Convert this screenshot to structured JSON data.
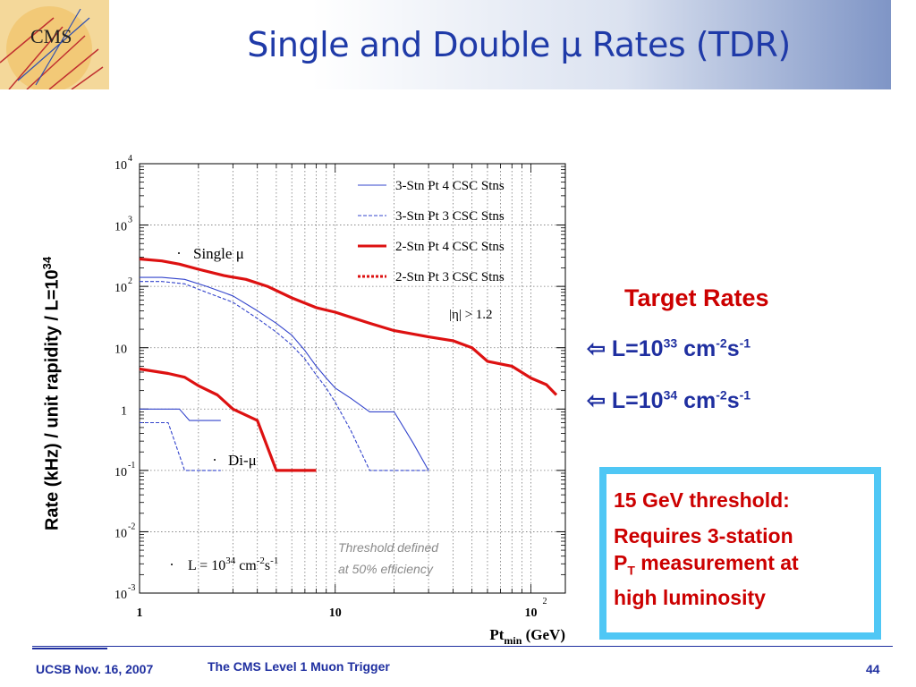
{
  "slide": {
    "title": "Single and Double μ Rates (TDR)",
    "logo_text": "CMS",
    "footer_left": "UCSB Nov. 16, 2007",
    "footer_center": "The CMS Level 1 Muon Trigger",
    "page_number": "44"
  },
  "target_rates": {
    "title": "Target Rates",
    "arrow": "⇦",
    "lines": [
      {
        "lumi": "L=10",
        "exp": "33",
        "unit": "cm",
        "unit_exp1": "-2",
        "unit2": "s",
        "unit_exp2": "-1"
      },
      {
        "lumi": "L=10",
        "exp": "34",
        "unit": "cm",
        "unit_exp1": "-2",
        "unit2": "s",
        "unit_exp2": "-1"
      }
    ]
  },
  "info_box": {
    "line1": "15 GeV threshold:",
    "line2": "Requires 3-station",
    "line3_a": "P",
    "line3_sub": "T",
    "line3_b": " measurement at",
    "line4": "high luminosity"
  },
  "chart_data": {
    "type": "line",
    "xlabel": "Pt",
    "xlabel_sub": "min",
    "xlabel_unit": "(GeV)",
    "ylabel": "Rate (kHz)  / unit rapidity / L=10",
    "ylabel_sup": "34",
    "x_scale": "log",
    "y_scale": "log",
    "xlim": [
      1,
      150
    ],
    "ylim": [
      0.001,
      10000
    ],
    "grid": true,
    "x_ticks": [
      {
        "value": 1,
        "base": "1",
        "exp": ""
      },
      {
        "value": 10,
        "base": "10",
        "exp": ""
      },
      {
        "value": 100,
        "base": "10",
        "exp": "2"
      }
    ],
    "y_ticks": [
      {
        "value": 10000,
        "base": "10",
        "exp": "4"
      },
      {
        "value": 1000,
        "base": "10",
        "exp": "3"
      },
      {
        "value": 100,
        "base": "10",
        "exp": "2"
      },
      {
        "value": 10,
        "base": "10",
        "exp": ""
      },
      {
        "value": 1,
        "base": "1",
        "exp": ""
      },
      {
        "value": 0.1,
        "base": "10",
        "exp": "-1"
      },
      {
        "value": 0.01,
        "base": "10",
        "exp": "-2"
      },
      {
        "value": 0.001,
        "base": "10",
        "exp": "-3"
      }
    ],
    "legend_position": "top-right",
    "series": [
      {
        "name": "3-Stn Pt  4 CSC Stns",
        "color": "#3344cc",
        "dash": false,
        "thick": false,
        "groups": [
          {
            "x": [
              1,
              1.3,
              1.7,
              2.2,
              3,
              4,
              5,
              6,
              7,
              8,
              9,
              10,
              12,
              15,
              20,
              25,
              30
            ],
            "y": [
              140,
              140,
              130,
              100,
              70,
              40,
              25,
              16,
              9,
              5,
              3.2,
              2.2,
              1.5,
              0.9,
              0.9,
              0.28,
              0.1
            ]
          },
          {
            "x": [
              1,
              1.6,
              1.8,
              2.6
            ],
            "y": [
              1,
              1,
              0.65,
              0.65
            ]
          }
        ]
      },
      {
        "name": "3-Stn Pt  3 CSC Stns",
        "color": "#3344cc",
        "dash": true,
        "thick": false,
        "groups": [
          {
            "x": [
              1,
              1.3,
              1.7,
              2.2,
              3,
              4,
              5,
              6,
              7,
              8,
              9,
              10,
              12,
              15,
              20,
              25,
              30
            ],
            "y": [
              120,
              120,
              110,
              80,
              55,
              30,
              18,
              11,
              6.5,
              3.6,
              2.2,
              1.3,
              0.45,
              0.1,
              0.1,
              0.1,
              0.1
            ]
          },
          {
            "x": [
              1,
              1.4,
              1.7,
              2.6
            ],
            "y": [
              0.6,
              0.6,
              0.1,
              0.1
            ]
          }
        ]
      },
      {
        "name": "2-Stn Pt  4 CSC Stns",
        "color": "#dd1111",
        "dash": false,
        "thick": true,
        "groups": [
          {
            "x": [
              1,
              1.3,
              1.6,
              2,
              2.7,
              3.5,
              4.5,
              6,
              8,
              10,
              15,
              20,
              30,
              40,
              50,
              60,
              80,
              100,
              120,
              135
            ],
            "y": [
              280,
              260,
              230,
              190,
              150,
              130,
              100,
              65,
              45,
              38,
              25,
              19,
              15,
              13,
              10,
              6,
              5,
              3.2,
              2.5,
              1.7
            ]
          },
          {
            "x": [
              1,
              1.4,
              1.7,
              2,
              2.5,
              3,
              4,
              5,
              6,
              8
            ],
            "y": [
              4.5,
              3.8,
              3.3,
              2.4,
              1.7,
              1,
              0.65,
              0.1,
              0.1,
              0.1
            ]
          }
        ]
      },
      {
        "name": "2-Stn Pt  3 CSC Stns",
        "color": "#dd1111",
        "dash": true,
        "thick": true,
        "groups": []
      }
    ],
    "annotations": [
      {
        "text": "Single μ"
      },
      {
        "text": "Di-μ"
      },
      {
        "text": "|η| > 1.2"
      },
      {
        "text_base": "L = 10",
        "sup1": "34",
        "mid": " cm",
        "sup2": "-2",
        "end": "s",
        "sup3": "-1"
      },
      {
        "text": "Threshold defined",
        "text2": "at 50% efficiency"
      }
    ]
  }
}
